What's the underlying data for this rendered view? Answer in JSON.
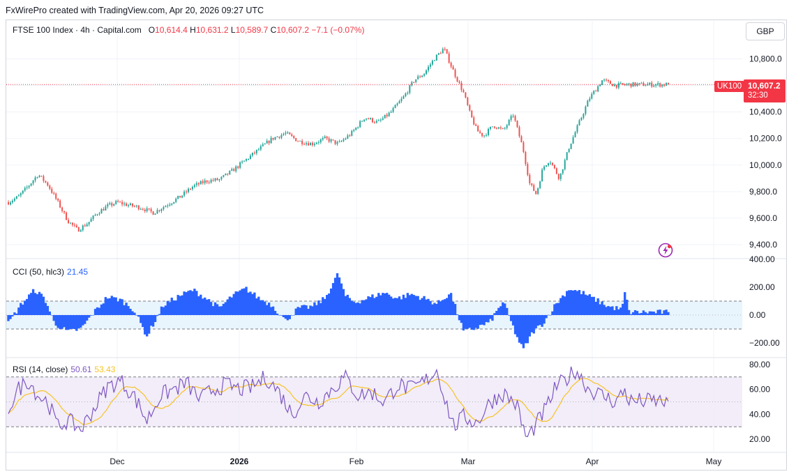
{
  "attribution": "FxWirePro created with TradingView.com, Apr 20, 2026 09:27 UTC",
  "legend": {
    "symbol": "FTSE 100 Index · 4h · Capital.com",
    "open_label": "O",
    "open": "10,614.4",
    "high_label": "H",
    "high": "10,631.2",
    "low_label": "L",
    "low": "10,589.7",
    "close_label": "C",
    "close": "10,607.2",
    "change": "−7.1 (−0.07%)"
  },
  "currency": "GBP",
  "last_price": {
    "symbol": "UK100",
    "price": "10,607.2",
    "countdown": "32:30"
  },
  "indicators": {
    "cci": {
      "label": "CCI (50, hlc3)",
      "value": "21.45"
    },
    "rsi": {
      "label": "RSI (14, close)",
      "value": "50.61",
      "ma_value": "53.43"
    }
  },
  "colors": {
    "up": "#26a69a",
    "down": "#ef5350",
    "cci": "#2962ff",
    "rsi": "#7e57c2",
    "rsi_ma": "#f7c325",
    "last_price": "#f23645",
    "icon": "#9c27b0"
  },
  "icons": {
    "bolt": "lightning-bolt-icon"
  },
  "chart_data": [
    {
      "type": "candlestick",
      "name": "FTSE 100 Index",
      "ylim": [
        9300,
        10950
      ],
      "yticks": [
        9400,
        9600,
        9800,
        10000,
        10200,
        10400,
        10600,
        10800
      ],
      "ytick_labels": [
        "9,400.0",
        "9,600.0",
        "9,800.0",
        "10,000.0",
        "10,200.0",
        "10,400.0",
        "10,600.0",
        "10,800.0"
      ],
      "last_value": 10607.2,
      "x_labels": [
        "Dec",
        "2026",
        "Feb",
        "Mar",
        "Apr",
        "May"
      ],
      "path_x": [
        0,
        0.015,
        0.03,
        0.045,
        0.06,
        0.075,
        0.09,
        0.105,
        0.12,
        0.135,
        0.15,
        0.165,
        0.18,
        0.2,
        0.22,
        0.24,
        0.26,
        0.28,
        0.3,
        0.32,
        0.34,
        0.36,
        0.38,
        0.4,
        0.42,
        0.44,
        0.46,
        0.48,
        0.5,
        0.52,
        0.54,
        0.56,
        0.58,
        0.6,
        0.615,
        0.63,
        0.645,
        0.66,
        0.675,
        0.69,
        0.7,
        0.71,
        0.72,
        0.735,
        0.75,
        0.765,
        0.78,
        0.79,
        0.8,
        0.81,
        0.82,
        0.835,
        0.85,
        0.865,
        0.88,
        0.9,
        0.92,
        0.94
      ],
      "path_y": [
        9720,
        9760,
        9840,
        9930,
        9850,
        9720,
        9580,
        9510,
        9560,
        9640,
        9690,
        9720,
        9700,
        9680,
        9640,
        9700,
        9760,
        9840,
        9880,
        9890,
        9960,
        10040,
        10120,
        10200,
        10240,
        10180,
        10160,
        10200,
        10160,
        10240,
        10360,
        10320,
        10400,
        10520,
        10640,
        10690,
        10800,
        10880,
        10700,
        10540,
        10380,
        10260,
        10220,
        10300,
        10260,
        10380,
        10120,
        9860,
        9780,
        9980,
        10040,
        9900,
        10140,
        10320,
        10500,
        10640,
        10600,
        10607
      ]
    },
    {
      "type": "bar",
      "name": "CCI (50, hlc3)",
      "ylim": [
        -300,
        400
      ],
      "yticks": [
        -200,
        0,
        200,
        400
      ],
      "ytick_labels": [
        "−200.00",
        "0.00",
        "200.00",
        "400.00"
      ],
      "band": [
        -100,
        100
      ],
      "last_value": 21.45,
      "path_x": [
        0,
        0.02,
        0.04,
        0.055,
        0.07,
        0.09,
        0.11,
        0.13,
        0.15,
        0.17,
        0.19,
        0.21,
        0.235,
        0.26,
        0.28,
        0.3,
        0.32,
        0.34,
        0.36,
        0.38,
        0.4,
        0.42,
        0.44,
        0.46,
        0.48,
        0.5,
        0.51,
        0.525,
        0.55,
        0.57,
        0.59,
        0.61,
        0.63,
        0.65,
        0.67,
        0.69,
        0.71,
        0.73,
        0.75,
        0.77,
        0.78,
        0.795,
        0.81,
        0.83,
        0.85,
        0.87,
        0.89,
        0.91,
        0.93,
        0.935,
        0.94
      ],
      "path_y": [
        -60,
        80,
        180,
        120,
        -60,
        -120,
        -100,
        20,
        130,
        110,
        40,
        -150,
        70,
        140,
        180,
        120,
        50,
        140,
        190,
        120,
        70,
        -40,
        50,
        60,
        120,
        300,
        140,
        90,
        130,
        160,
        120,
        150,
        120,
        80,
        160,
        -120,
        -90,
        -50,
        100,
        -150,
        -250,
        -120,
        -60,
        80,
        190,
        160,
        110,
        60,
        40,
        180,
        21
      ]
    },
    {
      "type": "line",
      "name": "RSI (14, close)",
      "ylim": [
        10,
        85
      ],
      "yticks": [
        20,
        40,
        60,
        80
      ],
      "ytick_labels": [
        "20.00",
        "40.00",
        "60.00",
        "80.00"
      ],
      "band": [
        30,
        70
      ],
      "midline": 50,
      "last_value": 50.61,
      "ma_last_value": 53.43,
      "path_x": [
        0,
        0.015,
        0.03,
        0.045,
        0.06,
        0.075,
        0.09,
        0.11,
        0.13,
        0.15,
        0.17,
        0.19,
        0.21,
        0.23,
        0.25,
        0.27,
        0.29,
        0.31,
        0.33,
        0.35,
        0.37,
        0.39,
        0.41,
        0.43,
        0.45,
        0.47,
        0.49,
        0.51,
        0.53,
        0.55,
        0.57,
        0.59,
        0.61,
        0.63,
        0.65,
        0.66,
        0.675,
        0.69,
        0.71,
        0.73,
        0.75,
        0.77,
        0.785,
        0.8,
        0.815,
        0.83,
        0.845,
        0.86,
        0.88,
        0.9,
        0.92,
        0.935,
        0.94
      ],
      "path_y": [
        45,
        60,
        68,
        55,
        50,
        30,
        35,
        28,
        45,
        62,
        67,
        55,
        35,
        55,
        60,
        65,
        52,
        60,
        64,
        60,
        62,
        70,
        58,
        40,
        55,
        50,
        60,
        70,
        55,
        58,
        50,
        64,
        60,
        66,
        76,
        55,
        30,
        38,
        33,
        50,
        57,
        48,
        20,
        32,
        45,
        62,
        68,
        76,
        60,
        55,
        50,
        60,
        50.6
      ]
    }
  ]
}
